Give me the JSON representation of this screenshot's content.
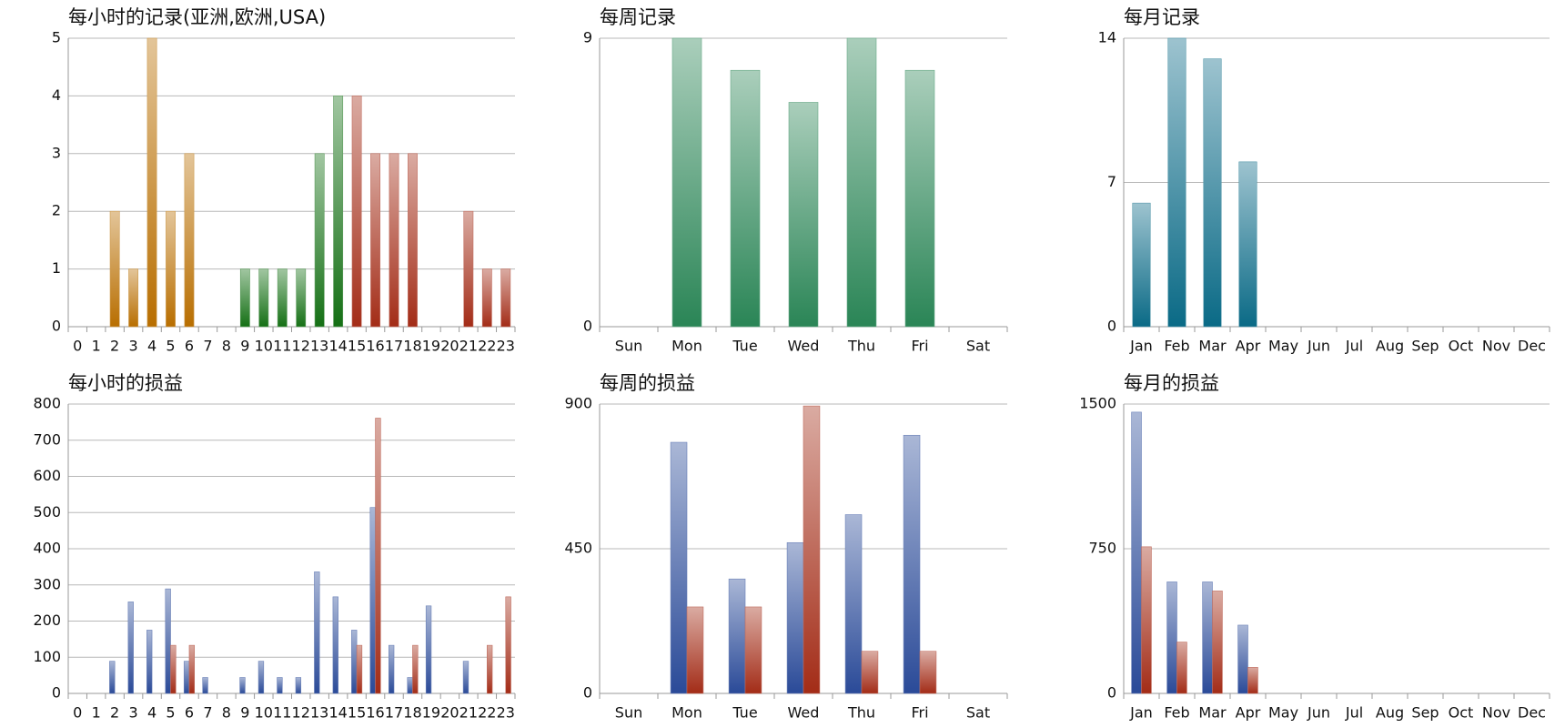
{
  "chart_data": [
    {
      "type": "bar",
      "title": "每小时的记录(亚洲,欧洲,USA)",
      "categories": [
        "0",
        "1",
        "2",
        "3",
        "4",
        "5",
        "6",
        "7",
        "8",
        "9",
        "10",
        "11",
        "12",
        "13",
        "14",
        "15",
        "16",
        "17",
        "18",
        "19",
        "20",
        "21",
        "22",
        "23"
      ],
      "values": [
        0,
        0,
        2,
        1,
        5,
        2,
        3,
        0,
        0,
        1,
        1,
        1,
        1,
        3,
        4,
        4,
        3,
        3,
        3,
        0,
        0,
        2,
        1,
        1
      ],
      "colors": [
        "#b86e00",
        "#b86e00",
        "#b86e00",
        "#b86e00",
        "#b86e00",
        "#b86e00",
        "#b86e00",
        "#b86e00",
        "#b86e00",
        "#157015",
        "#157015",
        "#157015",
        "#157015",
        "#157015",
        "#157015",
        "#a32c17",
        "#a32c17",
        "#a32c17",
        "#a32c17",
        "#a32c17",
        "#a32c17",
        "#a32c17",
        "#a32c17",
        "#a32c17"
      ],
      "ylim": [
        0,
        5
      ],
      "yticks": [
        0,
        1,
        2,
        3,
        4,
        5
      ],
      "grid": true
    },
    {
      "type": "bar",
      "title": "每周记录",
      "categories": [
        "Sun",
        "Mon",
        "Tue",
        "Wed",
        "Thu",
        "Fri",
        "Sat"
      ],
      "values": [
        0,
        9,
        8,
        7,
        9,
        8,
        0
      ],
      "color": "#2a8556",
      "ylim": [
        0,
        9
      ],
      "yticks": [
        0,
        9
      ],
      "grid": true
    },
    {
      "type": "bar",
      "title": "每月记录",
      "categories": [
        "Jan",
        "Feb",
        "Mar",
        "Apr",
        "May",
        "Jun",
        "Jul",
        "Aug",
        "Sep",
        "Oct",
        "Nov",
        "Dec"
      ],
      "values": [
        6,
        14,
        13,
        8,
        0,
        0,
        0,
        0,
        0,
        0,
        0,
        0
      ],
      "color": "#0a6a86",
      "ylim": [
        0,
        14
      ],
      "yticks": [
        0,
        7,
        14
      ],
      "grid": true
    },
    {
      "type": "bar",
      "title": "每小时的损益",
      "categories": [
        "0",
        "1",
        "2",
        "3",
        "4",
        "5",
        "6",
        "7",
        "8",
        "9",
        "10",
        "11",
        "12",
        "13",
        "14",
        "15",
        "16",
        "17",
        "18",
        "19",
        "20",
        "21",
        "22",
        "23"
      ],
      "series": [
        {
          "color": "#2a4a98",
          "values": [
            null,
            null,
            89,
            253,
            175,
            289,
            89,
            44,
            null,
            44,
            89,
            44,
            44,
            336,
            267,
            175,
            514,
            133,
            44,
            242,
            null,
            89,
            null,
            null
          ]
        },
        {
          "color": "#a32c17",
          "values": [
            null,
            null,
            null,
            null,
            null,
            133,
            133,
            null,
            null,
            null,
            null,
            null,
            null,
            null,
            null,
            133,
            761,
            null,
            133,
            null,
            null,
            null,
            133,
            267
          ]
        }
      ],
      "ylim": [
        0,
        800
      ],
      "yticks": [
        0,
        100,
        200,
        300,
        400,
        500,
        600,
        700,
        800
      ],
      "grid": true
    },
    {
      "type": "bar",
      "title": "每周的损益",
      "categories": [
        "Sun",
        "Mon",
        "Tue",
        "Wed",
        "Thu",
        "Fri",
        "Sat"
      ],
      "series": [
        {
          "color": "#2a4a98",
          "values": [
            null,
            781,
            356,
            469,
            556,
            803,
            null
          ]
        },
        {
          "color": "#a32c17",
          "values": [
            null,
            269,
            269,
            894,
            131,
            131,
            null
          ]
        }
      ],
      "ylim": [
        0,
        900
      ],
      "yticks": [
        0,
        450,
        900
      ],
      "grid": true
    },
    {
      "type": "bar",
      "title": "每月的损益",
      "categories": [
        "Jan",
        "Feb",
        "Mar",
        "Apr",
        "May",
        "Jun",
        "Jul",
        "Aug",
        "Sep",
        "Oct",
        "Nov",
        "Dec"
      ],
      "series": [
        {
          "color": "#2a4a98",
          "values": [
            1458,
            578,
            578,
            354,
            null,
            null,
            null,
            null,
            null,
            null,
            null,
            null
          ]
        },
        {
          "color": "#a32c17",
          "values": [
            760,
            266,
            531,
            135,
            null,
            null,
            null,
            null,
            null,
            null,
            null,
            null
          ]
        }
      ],
      "ylim": [
        0,
        1500
      ],
      "yticks": [
        0,
        750,
        1500
      ],
      "grid": true
    }
  ]
}
